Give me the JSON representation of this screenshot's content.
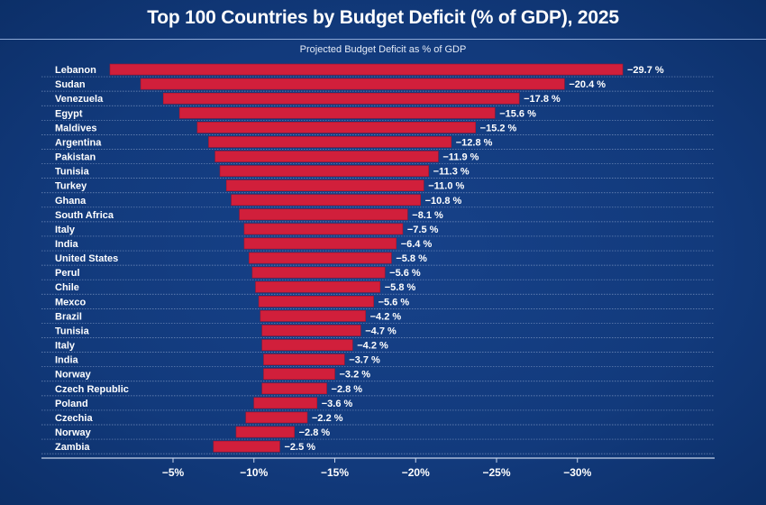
{
  "chart_data": {
    "type": "bar",
    "orientation": "horizontal",
    "title": "Top 100 Countries by Budget Deficit (% of GDP), 2025",
    "subtitle": "Projected Budget Deficit as % of GDP",
    "xlabel": "",
    "ylabel": "",
    "xlim": [
      0,
      -38
    ],
    "x_ticks": [
      -5,
      -10,
      -15,
      -20,
      -25,
      -30
    ],
    "x_tick_labels": [
      "−5%",
      "−10%",
      "−15%",
      "−20%",
      "−25%",
      "−30%"
    ],
    "grid": "dotted horizontal row separators",
    "legend": "none",
    "colors": {
      "bar": "#d11f3b",
      "background": "#123a7c",
      "text": "#ffffff"
    },
    "categories": [
      "Lebanon",
      "Sudan",
      "Venezuela",
      "Egypt",
      "Maldives",
      "Argentina",
      "Pakistan",
      "Tunisia",
      "Turkey",
      "Ghana",
      "South Africa",
      "Italy",
      "India",
      "United States",
      "Perul",
      "Chile",
      "Mexco",
      "Brazil",
      "Tunisia",
      "Italy",
      "India",
      "Norway",
      "Czech Republic",
      "Poland",
      "Czechia",
      "Norway",
      "Zambia"
    ],
    "data_labels": [
      "−29.7 %",
      "−20.4 %",
      "−17.8 %",
      "−15.6 %",
      "−15.2 %",
      "−12.8 %",
      "−11.9 %",
      "−11.3 %",
      "−11.0 %",
      "−10.8 %",
      "−8.1 %",
      "−7.5 %",
      "−6.4 %",
      "−5.8 %",
      "−5.6 %",
      "−5.8 %",
      "−5.6 %",
      "−4.2 %",
      "−4.7 %",
      "−4.2 %",
      "−3.7 %",
      "−3.2 %",
      "−2.8 %",
      "−3.6 %",
      "−2.2 %",
      "−2.8 %",
      "−2.5 %"
    ],
    "bar_extents": [
      [
        -1.1,
        -32.8
      ],
      [
        -3.0,
        -29.2
      ],
      [
        -4.4,
        -26.4
      ],
      [
        -5.4,
        -24.9
      ],
      [
        -6.5,
        -23.7
      ],
      [
        -7.2,
        -22.2
      ],
      [
        -7.6,
        -21.4
      ],
      [
        -7.9,
        -20.8
      ],
      [
        -8.3,
        -20.5
      ],
      [
        -8.6,
        -20.3
      ],
      [
        -9.1,
        -19.5
      ],
      [
        -9.4,
        -19.2
      ],
      [
        -9.4,
        -18.8
      ],
      [
        -9.7,
        -18.5
      ],
      [
        -9.9,
        -18.1
      ],
      [
        -10.1,
        -17.8
      ],
      [
        -10.3,
        -17.4
      ],
      [
        -10.4,
        -16.9
      ],
      [
        -10.5,
        -16.6
      ],
      [
        -10.5,
        -16.1
      ],
      [
        -10.6,
        -15.6
      ],
      [
        -10.6,
        -15.0
      ],
      [
        -10.5,
        -14.5
      ],
      [
        -10.0,
        -13.9
      ],
      [
        -9.5,
        -13.3
      ],
      [
        -8.9,
        -12.5
      ],
      [
        -7.5,
        -11.6
      ]
    ]
  }
}
